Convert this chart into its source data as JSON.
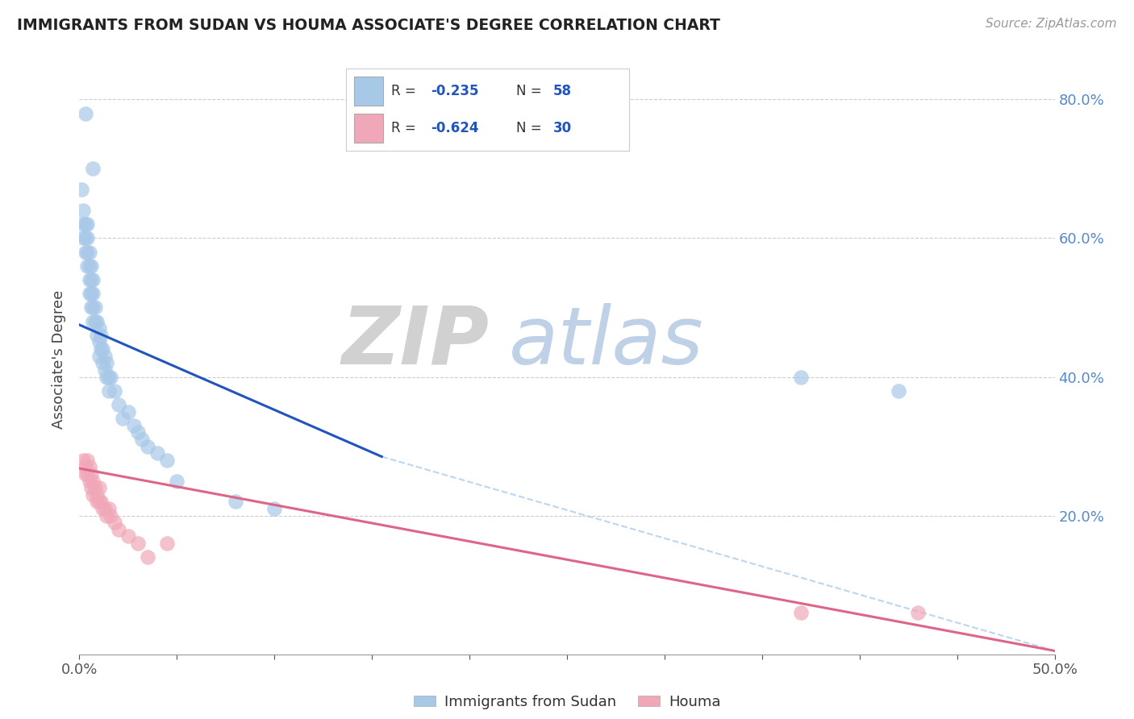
{
  "title": "IMMIGRANTS FROM SUDAN VS HOUMA ASSOCIATE'S DEGREE CORRELATION CHART",
  "source": "Source: ZipAtlas.com",
  "ylabel": "Associate's Degree",
  "xlim": [
    0.0,
    0.5
  ],
  "ylim": [
    0.0,
    0.85
  ],
  "color_blue": "#a8c8e8",
  "color_pink": "#f0a8b8",
  "color_line_blue": "#2255bb",
  "color_line_pink": "#dd6688",
  "color_dashed_line": "#aaccee",
  "watermark_zip": "ZIP",
  "watermark_atlas": "atlas",
  "legend_labels": [
    "Immigrants from Sudan",
    "Houma"
  ],
  "blue_points_x": [
    0.003,
    0.007,
    0.001,
    0.002,
    0.002,
    0.002,
    0.003,
    0.003,
    0.003,
    0.004,
    0.004,
    0.004,
    0.004,
    0.005,
    0.005,
    0.005,
    0.005,
    0.006,
    0.006,
    0.006,
    0.006,
    0.007,
    0.007,
    0.007,
    0.007,
    0.008,
    0.008,
    0.009,
    0.009,
    0.01,
    0.01,
    0.01,
    0.011,
    0.011,
    0.012,
    0.012,
    0.013,
    0.013,
    0.014,
    0.014,
    0.015,
    0.015,
    0.016,
    0.018,
    0.02,
    0.022,
    0.025,
    0.028,
    0.03,
    0.032,
    0.035,
    0.04,
    0.045,
    0.05,
    0.08,
    0.1,
    0.37,
    0.42
  ],
  "blue_points_y": [
    0.78,
    0.7,
    0.67,
    0.64,
    0.62,
    0.6,
    0.62,
    0.6,
    0.58,
    0.62,
    0.6,
    0.58,
    0.56,
    0.58,
    0.56,
    0.54,
    0.52,
    0.56,
    0.54,
    0.52,
    0.5,
    0.54,
    0.52,
    0.5,
    0.48,
    0.5,
    0.48,
    0.48,
    0.46,
    0.47,
    0.45,
    0.43,
    0.46,
    0.44,
    0.44,
    0.42,
    0.43,
    0.41,
    0.42,
    0.4,
    0.4,
    0.38,
    0.4,
    0.38,
    0.36,
    0.34,
    0.35,
    0.33,
    0.32,
    0.31,
    0.3,
    0.29,
    0.28,
    0.25,
    0.22,
    0.21,
    0.4,
    0.38
  ],
  "pink_points_x": [
    0.002,
    0.003,
    0.003,
    0.004,
    0.004,
    0.005,
    0.005,
    0.006,
    0.006,
    0.007,
    0.007,
    0.008,
    0.009,
    0.009,
    0.01,
    0.01,
    0.011,
    0.012,
    0.013,
    0.014,
    0.015,
    0.016,
    0.018,
    0.02,
    0.025,
    0.03,
    0.035,
    0.045,
    0.37,
    0.43
  ],
  "pink_points_y": [
    0.28,
    0.27,
    0.26,
    0.28,
    0.26,
    0.27,
    0.25,
    0.26,
    0.24,
    0.25,
    0.23,
    0.24,
    0.23,
    0.22,
    0.24,
    0.22,
    0.22,
    0.21,
    0.21,
    0.2,
    0.21,
    0.2,
    0.19,
    0.18,
    0.17,
    0.16,
    0.14,
    0.16,
    0.06,
    0.06
  ],
  "blue_line_x": [
    0.0,
    0.155
  ],
  "blue_line_y": [
    0.475,
    0.285
  ],
  "pink_line_x": [
    0.0,
    0.5
  ],
  "pink_line_y": [
    0.268,
    0.005
  ],
  "dashed_line_x": [
    0.155,
    0.5
  ],
  "dashed_line_y": [
    0.285,
    0.005
  ],
  "background_color": "#ffffff",
  "grid_color": "#cccccc"
}
